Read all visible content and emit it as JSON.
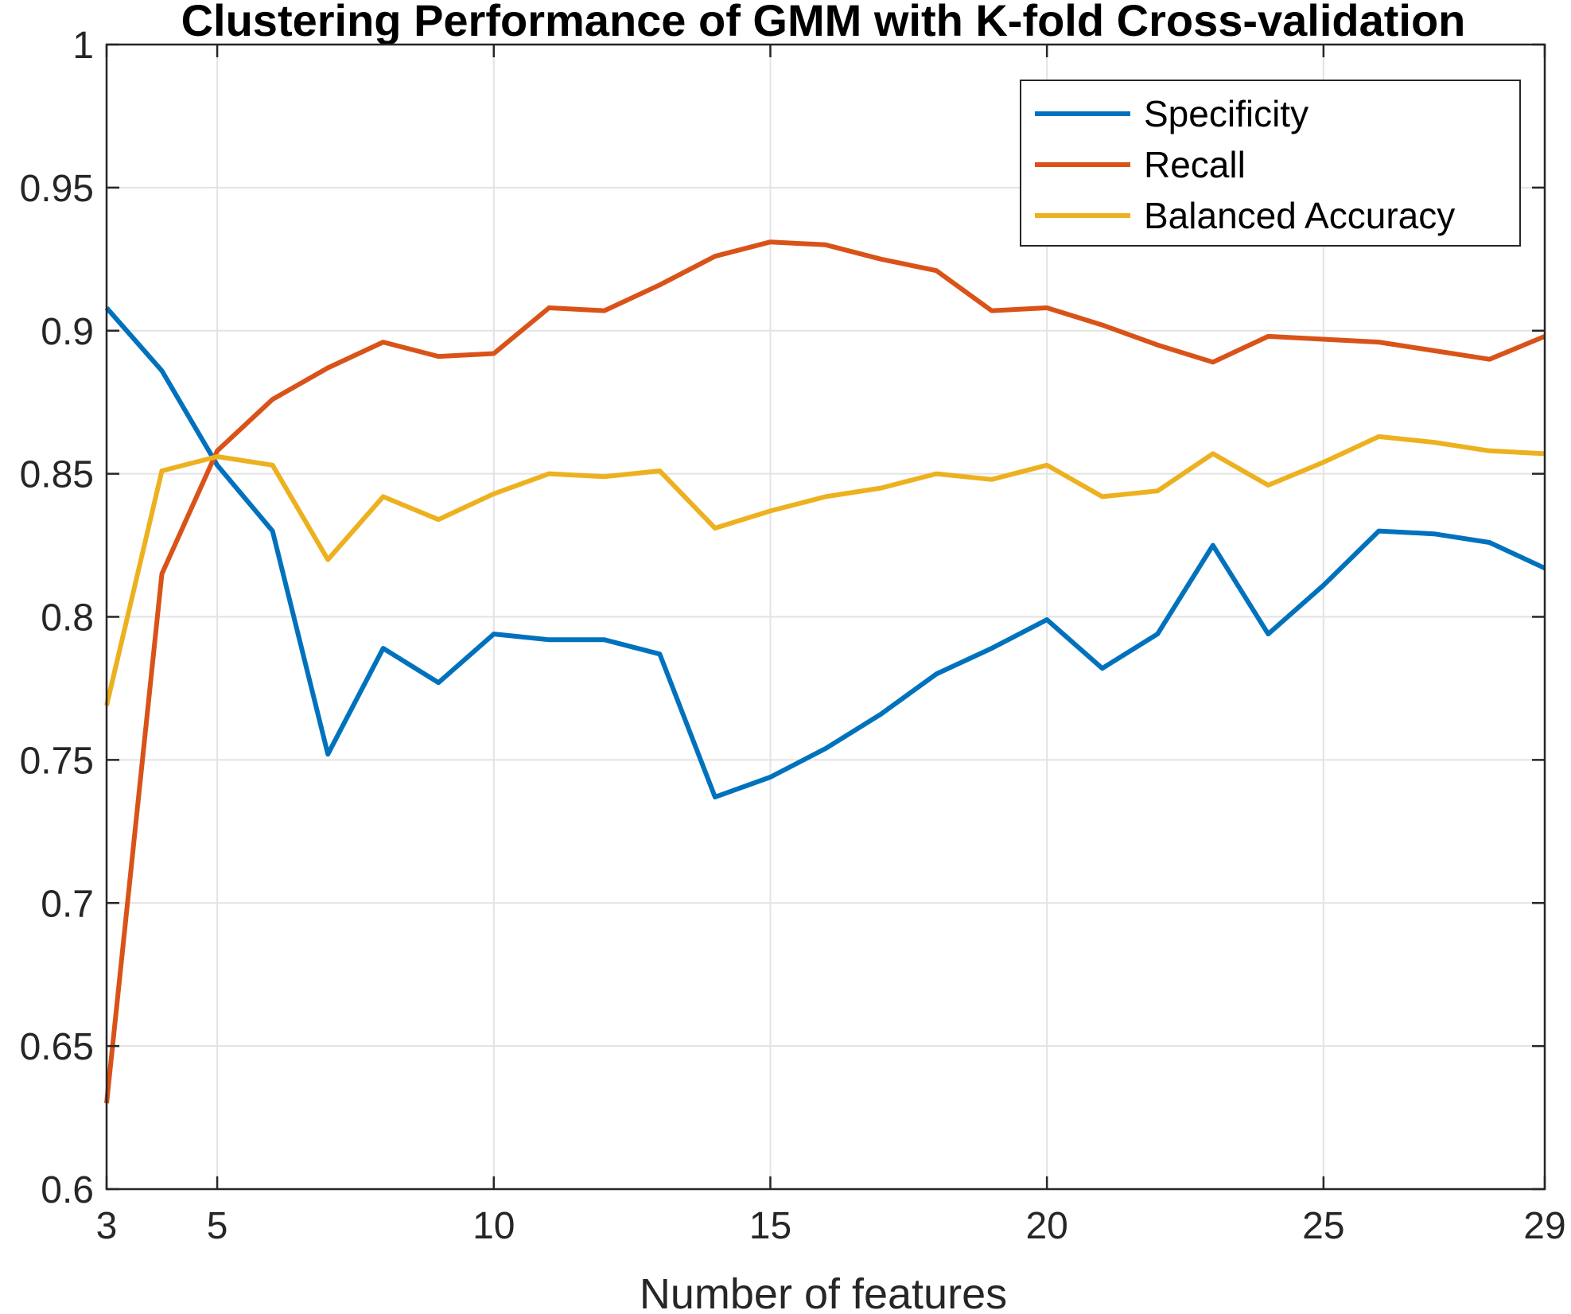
{
  "chart_data": {
    "type": "line",
    "title": "Clustering Performance of GMM with K-fold Cross-validation",
    "xlabel": "Number of features",
    "ylabel": "",
    "xlim": [
      3,
      29
    ],
    "ylim": [
      0.6,
      1
    ],
    "xticks": [
      3,
      5,
      10,
      15,
      20,
      25,
      29
    ],
    "xtick_labels": [
      "3",
      "5",
      "10",
      "15",
      "20",
      "25",
      "29"
    ],
    "yticks": [
      0.6,
      0.65,
      0.7,
      0.75,
      0.8,
      0.85,
      0.9,
      0.95,
      1
    ],
    "ytick_labels": [
      "0.6",
      "0.65",
      "0.7",
      "0.75",
      "0.8",
      "0.85",
      "0.9",
      "0.95",
      "1"
    ],
    "grid": true,
    "legend_position": "top-right",
    "x": [
      3,
      4,
      5,
      6,
      7,
      8,
      9,
      10,
      11,
      12,
      13,
      14,
      15,
      16,
      17,
      18,
      19,
      20,
      21,
      22,
      23,
      24,
      25,
      26,
      27,
      28,
      29
    ],
    "series": [
      {
        "name": "Specificity",
        "color": "#0072BD",
        "values": [
          0.908,
          0.886,
          0.853,
          0.83,
          0.752,
          0.789,
          0.777,
          0.794,
          0.792,
          0.792,
          0.787,
          0.737,
          0.744,
          0.754,
          0.766,
          0.78,
          0.789,
          0.799,
          0.782,
          0.794,
          0.825,
          0.794,
          0.811,
          0.83,
          0.829,
          0.826,
          0.817
        ]
      },
      {
        "name": "Recall",
        "color": "#D95319",
        "values": [
          0.63,
          0.815,
          0.858,
          0.876,
          0.887,
          0.896,
          0.891,
          0.892,
          0.908,
          0.907,
          0.916,
          0.926,
          0.931,
          0.93,
          0.925,
          0.921,
          0.907,
          0.908,
          0.902,
          0.895,
          0.889,
          0.898,
          0.897,
          0.896,
          0.893,
          0.89,
          0.898
        ]
      },
      {
        "name": "Balanced Accuracy",
        "color": "#EDB120",
        "values": [
          0.769,
          0.851,
          0.856,
          0.853,
          0.82,
          0.842,
          0.834,
          0.843,
          0.85,
          0.849,
          0.851,
          0.831,
          0.837,
          0.842,
          0.845,
          0.85,
          0.848,
          0.853,
          0.842,
          0.844,
          0.857,
          0.846,
          0.854,
          0.863,
          0.861,
          0.858,
          0.857
        ]
      }
    ]
  }
}
